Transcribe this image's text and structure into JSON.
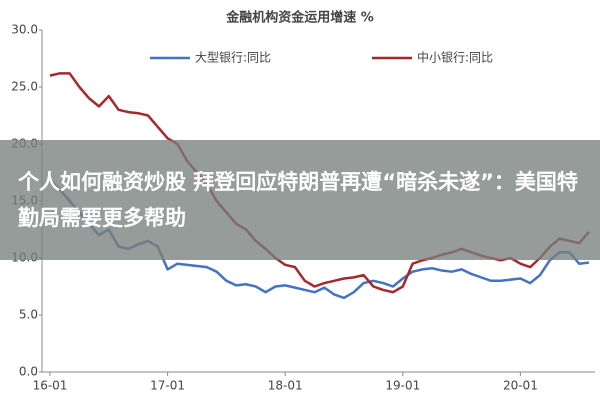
{
  "chart_data": {
    "type": "line",
    "title": "金融机构资金运用增速 %",
    "categories": [
      "16-01",
      null,
      null,
      null,
      null,
      null,
      null,
      null,
      null,
      null,
      null,
      null,
      "17-01",
      null,
      null,
      null,
      null,
      null,
      null,
      null,
      null,
      null,
      null,
      null,
      "18-01",
      null,
      null,
      null,
      null,
      null,
      null,
      null,
      null,
      null,
      null,
      null,
      "19-01",
      null,
      null,
      null,
      null,
      null,
      null,
      null,
      null,
      null,
      null,
      null,
      "20-01",
      null,
      null,
      null,
      null,
      null,
      null,
      null
    ],
    "series": [
      {
        "name": "大型银行:同比",
        "color": "#4472c4",
        "values": [
          16.8,
          16,
          15,
          14,
          13,
          12,
          12.5,
          11,
          10.8,
          11.2,
          11.5,
          11,
          9,
          9.5,
          9.4,
          9.3,
          9.2,
          8.8,
          8,
          7.6,
          7.7,
          7.5,
          7,
          7.5,
          7.6,
          7.4,
          7.2,
          7,
          7.4,
          6.8,
          6.5,
          7,
          7.8,
          8,
          7.8,
          7.5,
          8.2,
          8.8,
          9,
          9.1,
          8.9,
          8.8,
          9,
          8.6,
          8.3,
          8,
          8,
          8.1,
          8.2,
          7.8,
          8.5,
          9.8,
          10.5,
          10.5,
          9.5,
          9.6
        ]
      },
      {
        "name": "中小银行:同比",
        "color": "#a5282c",
        "values": [
          26,
          26.2,
          26.2,
          25,
          24,
          23.3,
          24.2,
          23,
          22.8,
          22.7,
          22.5,
          21.5,
          20.5,
          20,
          18.5,
          17.5,
          16.5,
          15,
          14,
          13,
          12.5,
          11.5,
          10.8,
          10,
          9.4,
          9.2,
          8,
          7.5,
          7.8,
          8,
          8.2,
          8.3,
          8.5,
          7.5,
          7.2,
          7,
          7.5,
          9.5,
          9.8,
          10,
          10.3,
          10.5,
          10.8,
          10.5,
          10.2,
          10,
          9.8,
          10,
          9.5,
          9.2,
          10,
          11,
          11.7,
          11.5,
          11.3,
          12.3
        ]
      }
    ],
    "ylim": [
      0,
      30
    ],
    "yticks": [
      {
        "value": 0,
        "label": "0.0"
      },
      {
        "value": 5,
        "label": "5.0"
      },
      {
        "value": 10,
        "label": "10.0"
      },
      {
        "value": 15,
        "label": "15.0"
      },
      {
        "value": 20,
        "label": "20.0"
      },
      {
        "value": 25,
        "label": "25.0"
      },
      {
        "value": 30,
        "label": "30.0"
      }
    ],
    "grid": false,
    "legend": "top"
  },
  "overlay": {
    "headline": "个人如何融资炒股 拜登回应特朗普再遭“暗杀未遂”：美国特勤局需要更多帮助"
  }
}
